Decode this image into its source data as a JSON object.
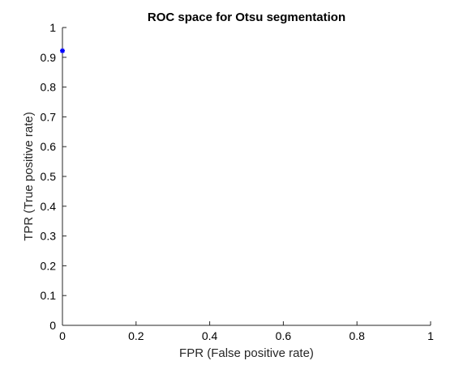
{
  "chart_data": {
    "type": "scatter",
    "title": "ROC space for Otsu segmentation",
    "xlabel": "FPR (False positive rate)",
    "ylabel": "TPR (True positive rate)",
    "xlim": [
      0,
      1
    ],
    "ylim": [
      0,
      1
    ],
    "x_ticks": [
      "0",
      "0.2",
      "0.4",
      "0.6",
      "0.8",
      "1"
    ],
    "y_ticks": [
      "0",
      "0.1",
      "0.2",
      "0.3",
      "0.4",
      "0.5",
      "0.6",
      "0.7",
      "0.8",
      "0.9",
      "1"
    ],
    "grid": false,
    "legend": "none",
    "marker": "asterisk",
    "series": [
      {
        "color": "#0000ff",
        "points": [
          {
            "x": 0.0,
            "y": 0.922
          }
        ]
      }
    ]
  }
}
